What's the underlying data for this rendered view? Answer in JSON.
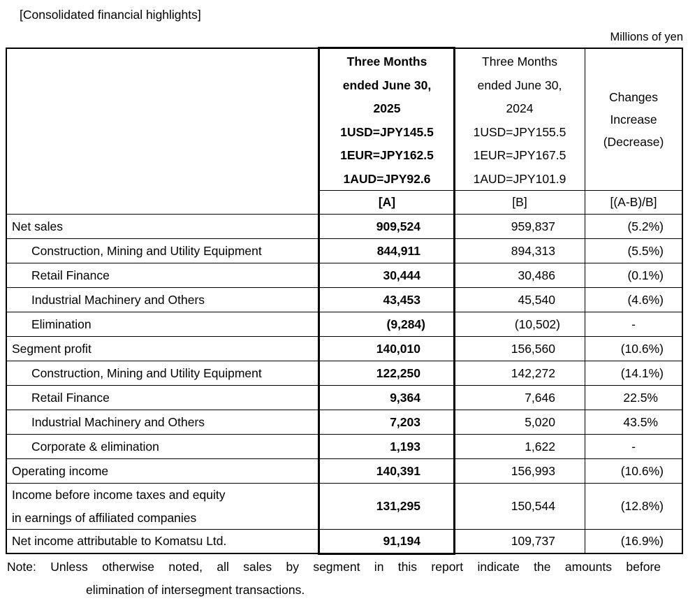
{
  "page": {
    "title": "[Consolidated financial highlights]",
    "unit_label": "Millions of yen"
  },
  "table": {
    "header": {
      "a_lines": [
        "Three Months",
        "ended June 30,",
        "2025",
        "1USD=JPY145.5",
        "1EUR=JPY162.5",
        "1AUD=JPY92.6"
      ],
      "b_lines": [
        "Three Months",
        "ended June 30,",
        "2024",
        "1USD=JPY155.5",
        "1EUR=JPY167.5",
        "1AUD=JPY101.9"
      ],
      "changes_lines": [
        "Changes",
        "Increase",
        "(Decrease)"
      ],
      "a_key": "[A]",
      "b_key": "[B]",
      "changes_key": "[(A-B)/B]"
    },
    "rows": [
      {
        "label": "Net sales",
        "a": "909,524",
        "b": "959,837",
        "c": "(5.2%)"
      },
      {
        "label": "Construction, Mining and Utility Equipment",
        "a": "844,911",
        "b": "894,313",
        "c": "(5.5%)"
      },
      {
        "label": "Retail Finance",
        "a": "30,444",
        "b": "30,486",
        "c": "(0.1%)"
      },
      {
        "label": "Industrial Machinery and Others",
        "a": "43,453",
        "b": "45,540",
        "c": "(4.6%)"
      },
      {
        "label": "Elimination",
        "a": "(9,284)",
        "b": "(10,502)",
        "c": "-"
      },
      {
        "label": "Segment profit",
        "a": "140,010",
        "b": "156,560",
        "c": "(10.6%)"
      },
      {
        "label": "Construction, Mining and Utility Equipment",
        "a": "122,250",
        "b": "142,272",
        "c": "(14.1%)"
      },
      {
        "label": "Retail Finance",
        "a": "9,364",
        "b": "7,646",
        "c": "22.5%"
      },
      {
        "label": "Industrial Machinery and Others",
        "a": "7,203",
        "b": "5,020",
        "c": "43.5%"
      },
      {
        "label": "Corporate & elimination",
        "a": "1,193",
        "b": "1,622",
        "c": "-"
      },
      {
        "label": "Operating income",
        "a": "140,391",
        "b": "156,993",
        "c": "(10.6%)"
      },
      {
        "label": "Income before income taxes and equity",
        "label2": "in earnings of affiliated companies",
        "a": "131,295",
        "b": "150,544",
        "c": "(12.8%)"
      },
      {
        "label": "Net income attributable to Komatsu Ltd.",
        "a": "91,194",
        "b": "109,737",
        "c": "(16.9%)"
      }
    ]
  },
  "note": {
    "line1": "Note: Unless otherwise noted, all sales by segment in this report indicate the amounts before",
    "line2": "elimination of intersegment transactions."
  }
}
